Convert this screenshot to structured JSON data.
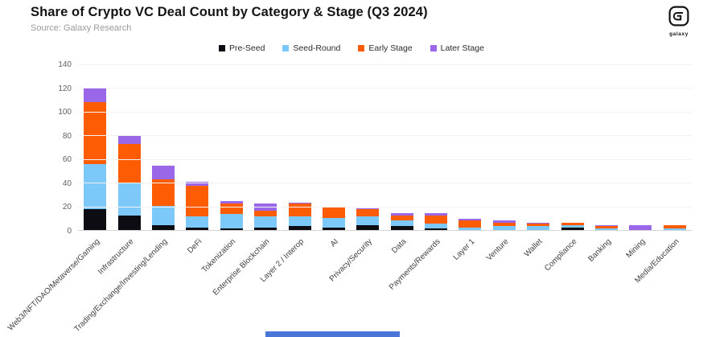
{
  "page": {
    "title": "Share of Crypto VC Deal Count by Category & Stage (Q3 2024)",
    "source": "Source: Galaxy Research",
    "logo_text": "galaxy"
  },
  "colors": {
    "pre_seed": "#0c0c12",
    "seed_round": "#7cc8f8",
    "early_stage": "#fd5c02",
    "later_stage": "#9a67e8",
    "grid": "#f2f2f2",
    "axis": "#d4d4d4"
  },
  "chart_data": {
    "type": "bar",
    "stacked": true,
    "title": "Share of Crypto VC Deal Count by Category & Stage (Q3 2024)",
    "xlabel": "",
    "ylabel": "",
    "ylim": [
      0,
      140
    ],
    "yticks": [
      0,
      20,
      40,
      60,
      80,
      100,
      120,
      140
    ],
    "grid": true,
    "legend_position": "top",
    "categories": [
      "Web3/NFT/DAO/Metaverse/Gaming",
      "Infrastructure",
      "Trading/Exchange/Investing/Lending",
      "DeFi",
      "Tokenization",
      "Enterprise Blockchain",
      "Layer 2 / Interop",
      "AI",
      "Privacy/Security",
      "Data",
      "Payments/Rewards",
      "Layer 1",
      "Venture",
      "Wallet",
      "Compliance",
      "Banking",
      "Mining",
      "Media/Education"
    ],
    "series": [
      {
        "name": "Pre-Seed",
        "color": "#0c0c12",
        "values": [
          18,
          13,
          5,
          3,
          2,
          3,
          4,
          3,
          5,
          4,
          2,
          1,
          1,
          1,
          3,
          1,
          0,
          1
        ]
      },
      {
        "name": "Seed-Round",
        "color": "#7cc8f8",
        "values": [
          38,
          27,
          16,
          9,
          12,
          9,
          8,
          8,
          7,
          5,
          4,
          2,
          3,
          3,
          2,
          1,
          1,
          1
        ]
      },
      {
        "name": "Early Stage",
        "color": "#fd5c02",
        "values": [
          52,
          33,
          22,
          26,
          9,
          5,
          11,
          9,
          6,
          4,
          7,
          6,
          3,
          2,
          2,
          2,
          0,
          3
        ]
      },
      {
        "name": "Later Stage",
        "color": "#9a67e8",
        "values": [
          12,
          7,
          12,
          3,
          2,
          6,
          1,
          0,
          1,
          2,
          2,
          1,
          2,
          1,
          0,
          1,
          4,
          0
        ]
      }
    ],
    "totals": [
      120,
      80,
      55,
      41,
      25,
      23,
      24,
      20,
      19,
      15,
      15,
      10,
      9,
      7,
      7,
      5,
      5,
      5
    ]
  }
}
